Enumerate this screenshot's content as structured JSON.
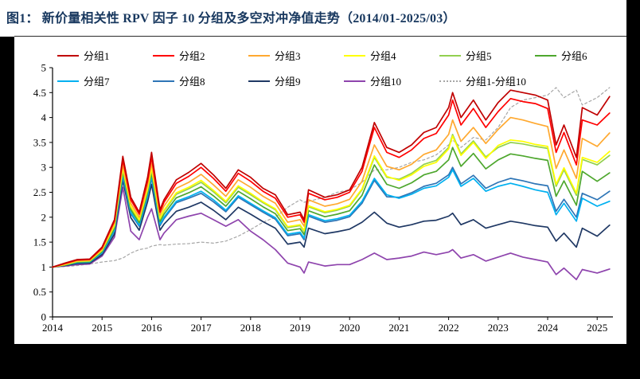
{
  "title": "图1：  新价量相关性 RPV 因子 10 分组及多空对冲净值走势（2014/01-2025/03）",
  "title_color": "#17375E",
  "chart_data": {
    "type": "line",
    "title": "新价量相关性 RPV 因子 10 分组及多空对冲净值走势（2014/01-2025/03）",
    "xlabel": "",
    "ylabel": "",
    "xlim": [
      2014,
      2025.4
    ],
    "ylim": [
      0,
      5
    ],
    "grid": false,
    "legend_position": "top",
    "yticks": [
      "0",
      "0.5",
      "1",
      "1.5",
      "2",
      "2.5",
      "3",
      "3.5",
      "4",
      "4.5",
      "5"
    ],
    "ytick_values": [
      0,
      0.5,
      1,
      1.5,
      2,
      2.5,
      3,
      3.5,
      4,
      4.5,
      5
    ],
    "xticks": [
      "2014",
      "2015",
      "2016",
      "2017",
      "2018",
      "2019",
      "2020",
      "2021",
      "2022",
      "2023",
      "2024",
      "2025"
    ],
    "xtick_values": [
      2014,
      2015,
      2016,
      2017,
      2018,
      2019,
      2020,
      2021,
      2022,
      2023,
      2024,
      2025
    ],
    "x": [
      2014.0,
      2014.25,
      2014.5,
      2014.75,
      2015.0,
      2015.25,
      2015.42,
      2015.58,
      2015.75,
      2015.92,
      2016.0,
      2016.17,
      2016.25,
      2016.5,
      2016.75,
      2017.0,
      2017.25,
      2017.5,
      2017.75,
      2018.0,
      2018.25,
      2018.5,
      2018.75,
      2019.0,
      2019.08,
      2019.17,
      2019.5,
      2019.75,
      2020.0,
      2020.25,
      2020.5,
      2020.75,
      2021.0,
      2021.25,
      2021.5,
      2021.75,
      2022.0,
      2022.08,
      2022.25,
      2022.5,
      2022.75,
      2023.0,
      2023.25,
      2023.5,
      2023.75,
      2024.0,
      2024.17,
      2024.33,
      2024.58,
      2024.7,
      2025.0,
      2025.25
    ],
    "series": [
      {
        "name": "分组1",
        "color": "#C00000",
        "dash": false,
        "values": [
          1.0,
          1.08,
          1.15,
          1.16,
          1.4,
          1.95,
          3.22,
          2.4,
          2.1,
          2.8,
          3.3,
          2.15,
          2.35,
          2.75,
          2.9,
          3.08,
          2.85,
          2.58,
          2.95,
          2.8,
          2.58,
          2.45,
          2.05,
          2.1,
          1.95,
          2.55,
          2.4,
          2.45,
          2.55,
          3.0,
          3.9,
          3.4,
          3.3,
          3.45,
          3.7,
          3.8,
          4.2,
          4.5,
          4.0,
          4.35,
          3.95,
          4.3,
          4.55,
          4.5,
          4.45,
          4.35,
          3.45,
          3.85,
          3.2,
          4.2,
          4.05,
          4.42
        ]
      },
      {
        "name": "分组2",
        "color": "#FF0000",
        "dash": false,
        "values": [
          1.0,
          1.07,
          1.14,
          1.15,
          1.38,
          1.92,
          3.15,
          2.35,
          2.06,
          2.72,
          3.2,
          2.1,
          2.3,
          2.68,
          2.82,
          3.0,
          2.78,
          2.52,
          2.88,
          2.72,
          2.52,
          2.38,
          2.0,
          2.05,
          1.9,
          2.48,
          2.35,
          2.4,
          2.5,
          2.92,
          3.8,
          3.3,
          3.2,
          3.35,
          3.58,
          3.68,
          4.05,
          4.35,
          3.85,
          4.18,
          3.8,
          4.12,
          4.38,
          4.32,
          4.28,
          4.18,
          3.3,
          3.7,
          3.05,
          3.95,
          3.85,
          4.09
        ]
      },
      {
        "name": "分组3",
        "color": "#FFA930",
        "dash": false,
        "values": [
          1.0,
          1.06,
          1.13,
          1.14,
          1.36,
          1.88,
          3.06,
          2.28,
          2.0,
          2.64,
          3.08,
          2.04,
          2.22,
          2.58,
          2.7,
          2.86,
          2.65,
          2.42,
          2.75,
          2.6,
          2.42,
          2.28,
          1.9,
          1.95,
          1.82,
          2.35,
          2.22,
          2.27,
          2.36,
          2.72,
          3.45,
          3.02,
          2.95,
          3.06,
          3.26,
          3.35,
          3.66,
          3.95,
          3.52,
          3.8,
          3.48,
          3.76,
          4.0,
          3.95,
          3.88,
          3.82,
          2.98,
          3.35,
          2.78,
          3.58,
          3.42,
          3.69
        ]
      },
      {
        "name": "分组4",
        "color": "#FFFF00",
        "dash": false,
        "values": [
          1.0,
          1.05,
          1.12,
          1.13,
          1.34,
          1.84,
          2.99,
          2.22,
          1.95,
          2.57,
          2.99,
          1.98,
          2.14,
          2.49,
          2.6,
          2.74,
          2.54,
          2.32,
          2.63,
          2.48,
          2.31,
          2.17,
          1.81,
          1.85,
          1.73,
          2.23,
          2.11,
          2.16,
          2.24,
          2.57,
          3.23,
          2.82,
          2.74,
          2.85,
          3.02,
          3.1,
          3.37,
          3.63,
          3.24,
          3.5,
          3.18,
          3.44,
          3.55,
          3.52,
          3.46,
          3.42,
          2.66,
          2.99,
          2.48,
          3.2,
          3.1,
          3.32
        ]
      },
      {
        "name": "分组5",
        "color": "#92D050",
        "dash": false,
        "values": [
          1.0,
          1.05,
          1.11,
          1.12,
          1.33,
          1.82,
          2.96,
          2.2,
          1.93,
          2.54,
          2.96,
          1.96,
          2.12,
          2.46,
          2.57,
          2.7,
          2.51,
          2.29,
          2.6,
          2.45,
          2.29,
          2.15,
          1.79,
          1.83,
          1.71,
          2.21,
          2.09,
          2.14,
          2.22,
          2.55,
          3.2,
          2.8,
          2.76,
          2.88,
          3.06,
          3.14,
          3.4,
          3.66,
          3.27,
          3.53,
          3.21,
          3.4,
          3.5,
          3.47,
          3.42,
          3.38,
          2.62,
          2.95,
          2.44,
          3.16,
          3.05,
          3.24
        ]
      },
      {
        "name": "分组6",
        "color": "#4EA72E",
        "dash": false,
        "values": [
          1.0,
          1.04,
          1.1,
          1.11,
          1.31,
          1.78,
          2.91,
          2.15,
          1.89,
          2.49,
          2.89,
          1.91,
          2.06,
          2.39,
          2.49,
          2.61,
          2.43,
          2.22,
          2.52,
          2.37,
          2.21,
          2.07,
          1.73,
          1.77,
          1.65,
          2.13,
          2.01,
          2.06,
          2.13,
          2.44,
          3.05,
          2.66,
          2.58,
          2.69,
          2.85,
          2.92,
          3.15,
          3.4,
          3.02,
          3.28,
          2.97,
          3.15,
          3.27,
          3.23,
          3.18,
          3.14,
          2.42,
          2.73,
          2.24,
          2.92,
          2.72,
          2.89
        ]
      },
      {
        "name": "分组7",
        "color": "#00B0F0",
        "dash": false,
        "values": [
          1.0,
          1.04,
          1.09,
          1.1,
          1.29,
          1.74,
          2.85,
          2.1,
          1.84,
          2.43,
          2.82,
          1.86,
          2.0,
          2.32,
          2.41,
          2.52,
          2.35,
          2.14,
          2.43,
          2.28,
          2.13,
          1.99,
          1.66,
          1.7,
          1.58,
          2.05,
          1.93,
          1.97,
          2.04,
          2.32,
          2.78,
          2.45,
          2.38,
          2.46,
          2.58,
          2.63,
          2.8,
          2.95,
          2.62,
          2.78,
          2.52,
          2.62,
          2.68,
          2.62,
          2.55,
          2.5,
          2.05,
          2.28,
          1.92,
          2.38,
          2.22,
          2.32
        ]
      },
      {
        "name": "分组8",
        "color": "#2E75B6",
        "dash": false,
        "values": [
          1.0,
          1.04,
          1.09,
          1.1,
          1.28,
          1.72,
          2.81,
          2.07,
          1.82,
          2.4,
          2.78,
          1.83,
          1.97,
          2.29,
          2.38,
          2.48,
          2.31,
          2.11,
          2.4,
          2.25,
          2.1,
          1.96,
          1.63,
          1.67,
          1.55,
          2.02,
          1.9,
          1.94,
          2.01,
          2.28,
          2.74,
          2.41,
          2.4,
          2.49,
          2.62,
          2.68,
          2.85,
          3.0,
          2.67,
          2.84,
          2.58,
          2.7,
          2.78,
          2.73,
          2.67,
          2.63,
          2.12,
          2.36,
          2.0,
          2.48,
          2.35,
          2.52
        ]
      },
      {
        "name": "分组9",
        "color": "#1F3864",
        "dash": false,
        "values": [
          1.0,
          1.03,
          1.07,
          1.08,
          1.25,
          1.66,
          2.74,
          1.99,
          1.74,
          2.31,
          2.66,
          1.74,
          1.86,
          2.12,
          2.2,
          2.3,
          2.14,
          1.95,
          2.2,
          2.06,
          1.91,
          1.78,
          1.46,
          1.5,
          1.4,
          1.78,
          1.67,
          1.71,
          1.76,
          1.9,
          2.1,
          1.88,
          1.8,
          1.85,
          1.92,
          1.94,
          2.02,
          2.08,
          1.85,
          1.95,
          1.78,
          1.85,
          1.92,
          1.88,
          1.83,
          1.8,
          1.52,
          1.68,
          1.4,
          1.78,
          1.62,
          1.84
        ]
      },
      {
        "name": "分组10",
        "color": "#8E44AD",
        "dash": false,
        "values": [
          1.0,
          1.02,
          1.05,
          1.06,
          1.22,
          1.6,
          2.6,
          1.72,
          1.55,
          2.0,
          2.17,
          1.55,
          1.68,
          1.95,
          2.02,
          2.08,
          1.95,
          1.82,
          1.95,
          1.72,
          1.55,
          1.35,
          1.08,
          1.0,
          0.88,
          1.1,
          1.02,
          1.05,
          1.05,
          1.15,
          1.28,
          1.15,
          1.18,
          1.22,
          1.3,
          1.25,
          1.3,
          1.35,
          1.18,
          1.25,
          1.12,
          1.2,
          1.28,
          1.2,
          1.15,
          1.1,
          0.85,
          0.98,
          0.75,
          0.95,
          0.88,
          0.96
        ]
      },
      {
        "name": "分组1-分组10",
        "color": "#A6A6A6",
        "dash": true,
        "values": [
          1.0,
          1.01,
          1.03,
          1.06,
          1.1,
          1.13,
          1.18,
          1.28,
          1.35,
          1.38,
          1.42,
          1.45,
          1.44,
          1.46,
          1.47,
          1.5,
          1.48,
          1.52,
          1.62,
          1.75,
          1.9,
          2.0,
          2.2,
          2.35,
          2.3,
          2.32,
          2.4,
          2.5,
          2.55,
          2.7,
          2.95,
          2.95,
          3.0,
          3.1,
          3.15,
          3.25,
          3.45,
          3.55,
          3.4,
          3.6,
          3.55,
          3.8,
          4.2,
          4.35,
          4.4,
          4.45,
          4.6,
          4.4,
          4.55,
          4.25,
          4.4,
          4.6
        ]
      }
    ]
  }
}
